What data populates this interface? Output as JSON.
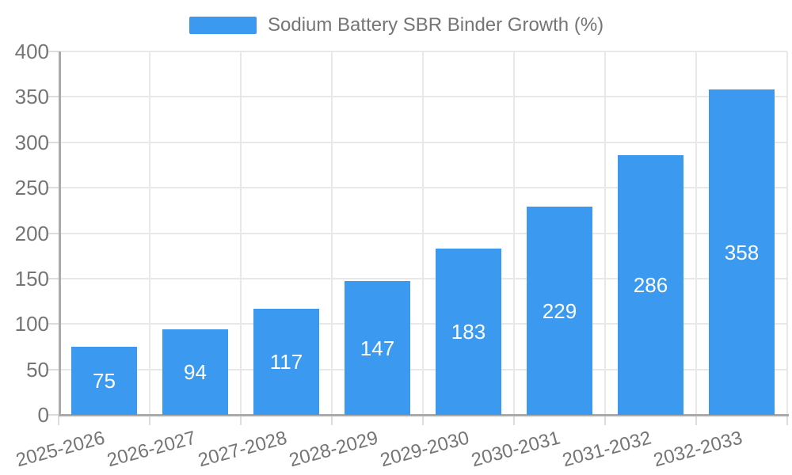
{
  "legend": {
    "title": "Sodium Battery SBR Binder Growth (%)",
    "swatch_color": "#3b99f0"
  },
  "chart_data": {
    "type": "bar",
    "title": "Sodium Battery SBR Binder Growth (%)",
    "categories": [
      "2025-2026",
      "2026-2027",
      "2027-2028",
      "2028-2029",
      "2029-2030",
      "2030-2031",
      "2031-2032",
      "2032-2033"
    ],
    "values": [
      75,
      94,
      117,
      147,
      183,
      229,
      286,
      358
    ],
    "xlabel": "",
    "ylabel": "",
    "ylim": [
      0,
      400
    ],
    "ytick_step": 50,
    "ytick_labels": [
      "0",
      "50",
      "100",
      "150",
      "200",
      "250",
      "300",
      "350",
      "400"
    ],
    "grid": true,
    "legend_position": "top-center",
    "bar_label_position": "inside-center",
    "x_label_rotation_deg": -15,
    "colors": {
      "bar": "#3b99f0",
      "bar_label": "#ffffff",
      "axis_line": "#aaaaaa",
      "tick": "#dddddd",
      "gridline": "#e8e8e8",
      "axis_text": "#757575",
      "background": "#ffffff"
    }
  }
}
